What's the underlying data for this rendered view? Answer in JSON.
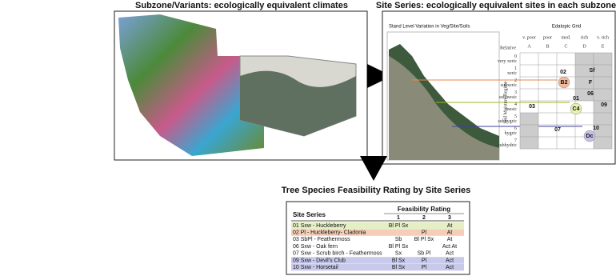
{
  "left_panel": {
    "title": "Subzone/Variants: ecologically equivalent climates"
  },
  "right_panel": {
    "title": "Site Series: ecologically equivalent sites in each subzone",
    "profile_title": "Stand Level Variation in Veg/Site/Soils",
    "grid_title": "Edatopic Grid",
    "relative": "Relative",
    "axis_label": "Soil Moisture Regime",
    "columns": [
      {
        "top": "v. poor",
        "letter": "A"
      },
      {
        "top": "poor",
        "letter": "B"
      },
      {
        "top": "med.",
        "letter": "C"
      },
      {
        "top": "rich",
        "letter": "D"
      },
      {
        "top": "v. rich",
        "letter": "E"
      }
    ],
    "rows": [
      {
        "num": "0",
        "name": "very xeric"
      },
      {
        "num": "1",
        "name": "xeric"
      },
      {
        "num": "2",
        "name": "subxeric"
      },
      {
        "num": "3",
        "name": "submesic"
      },
      {
        "num": "4",
        "name": "mesic"
      },
      {
        "num": "5",
        "name": "subhygric"
      },
      {
        "num": "6",
        "name": "hygric"
      },
      {
        "num": "7",
        "name": "subhydric"
      }
    ],
    "cells": [
      "02",
      "B2",
      "Sf",
      "F",
      "01",
      "06",
      "C4",
      "03",
      "09",
      "07",
      "10",
      "Dc"
    ]
  },
  "table": {
    "title": "Tree Species Feasibility Rating by Site Series",
    "header": {
      "site_series": "Site Series",
      "rating": "Feasibility Rating",
      "columns": [
        "1",
        "2",
        "3"
      ]
    },
    "rows": [
      {
        "series": "01 Sxw - Huckleberry",
        "ratings": [
          "Bl Pl Sx",
          null,
          "At"
        ]
      },
      {
        "series": "02 Pl - Huckleberry- Cladonia",
        "ratings": [
          null,
          "Pl",
          "At"
        ]
      },
      {
        "series": "03 SbPl - Feathermoss",
        "ratings": [
          "Sb",
          "Bl Pl Sx",
          "At"
        ]
      },
      {
        "series": "06 Sxw - Oak fern",
        "ratings": [
          "Bl Pl Sx",
          null,
          "Act At"
        ]
      },
      {
        "series": "07 Sxw - Scrub birch - Feathermoss",
        "ratings": [
          "Sx",
          "Sb Pl",
          "Act"
        ]
      },
      {
        "series": "09 Sxw - Devil's Club",
        "ratings": [
          "Bl Sx",
          "Pl",
          "Act"
        ]
      },
      {
        "series": "10 Sxw - Horsetail",
        "ratings": [
          "Bl Sx",
          "Pl",
          "Act"
        ]
      }
    ]
  }
}
